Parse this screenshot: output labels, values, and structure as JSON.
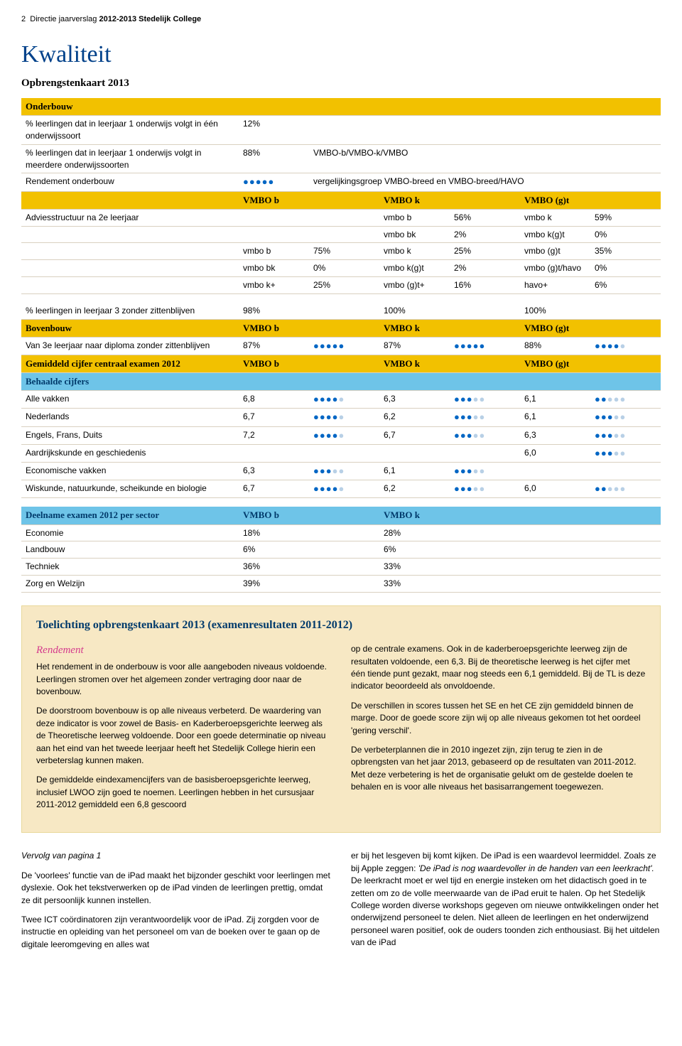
{
  "header": {
    "page_num": "2",
    "doc_title": "Directie jaarverslag",
    "year": "2012-2013",
    "school": "Stedelijk College"
  },
  "title": "Kwaliteit",
  "subtitle": "Opbrengstenkaart 2013",
  "onderbouw": {
    "header": "Onderbouw",
    "r1_label": "% leerlingen dat in leerjaar 1 onderwijs volgt in één onderwijssoort",
    "r1_val": "12%",
    "r2_label": "% leerlingen dat in leerjaar 1 onderwijs volgt in meerdere onderwijssoorten",
    "r2_val": "88%",
    "r2_note": "VMBO-b/VMBO-k/VMBO",
    "r3_label": "Rendement onderbouw",
    "r3_dots": {
      "filled": 5,
      "empty": 0
    },
    "r3_note": "vergelijkingsgroep VMBO-breed en VMBO-breed/HAVO",
    "col_b": "VMBO b",
    "col_k": "VMBO k",
    "col_gt": "VMBO (g)t",
    "advies_label": "Adviesstructuur na 2e leerjaar",
    "grid": [
      [
        "",
        "",
        "vmbo b",
        "56%",
        "vmbo k",
        "59%"
      ],
      [
        "",
        "",
        "vmbo bk",
        "2%",
        "vmbo k(g)t",
        "0%"
      ],
      [
        "vmbo b",
        "75%",
        "vmbo k",
        "25%",
        "vmbo (g)t",
        "35%"
      ],
      [
        "vmbo bk",
        "0%",
        "vmbo k(g)t",
        "2%",
        "vmbo (g)t/havo",
        "0%"
      ],
      [
        "vmbo k+",
        "25%",
        "vmbo (g)t+",
        "16%",
        "havo+",
        "6%"
      ]
    ]
  },
  "mid": {
    "r1_label": "% leerlingen in leerjaar 3 zonder zittenblijven",
    "r1_b": "98%",
    "r1_k": "100%",
    "r1_gt": "100%",
    "boven_header": "Bovenbouw",
    "col_b": "VMBO b",
    "col_k": "VMBO k",
    "col_gt": "VMBO (g)t",
    "r2_label": "Van 3e leerjaar naar diploma zonder zittenblijven",
    "r2_b": "87%",
    "r2_bd": {
      "f": 5,
      "e": 0
    },
    "r2_k": "87%",
    "r2_kd": {
      "f": 5,
      "e": 0
    },
    "r2_gt": "88%",
    "r2_gtd": {
      "f": 4,
      "e": 1
    },
    "gem_header": "Gemiddeld cijfer centraal examen 2012",
    "beh_header": "Behaalde cijfers",
    "rows": [
      {
        "label": "Alle vakken",
        "b": "6,8",
        "bd": {
          "f": 4,
          "e": 1
        },
        "k": "6,3",
        "kd": {
          "f": 3,
          "e": 2
        },
        "gt": "6,1",
        "gtd": {
          "f": 2,
          "e": 3
        }
      },
      {
        "label": "Nederlands",
        "b": "6,7",
        "bd": {
          "f": 4,
          "e": 1
        },
        "k": "6,2",
        "kd": {
          "f": 3,
          "e": 2
        },
        "gt": "6,1",
        "gtd": {
          "f": 3,
          "e": 2
        }
      },
      {
        "label": "Engels, Frans, Duits",
        "b": "7,2",
        "bd": {
          "f": 4,
          "e": 1
        },
        "k": "6,7",
        "kd": {
          "f": 3,
          "e": 2
        },
        "gt": "6,3",
        "gtd": {
          "f": 3,
          "e": 2
        }
      },
      {
        "label": "Aardrijkskunde en geschiedenis",
        "b": "",
        "bd": null,
        "k": "",
        "kd": null,
        "gt": "6,0",
        "gtd": {
          "f": 3,
          "e": 2
        }
      },
      {
        "label": "Economische vakken",
        "b": "6,3",
        "bd": {
          "f": 3,
          "e": 2
        },
        "k": "6,1",
        "kd": {
          "f": 3,
          "e": 2
        },
        "gt": "",
        "gtd": null
      },
      {
        "label": "Wiskunde, natuurkunde, scheikunde en biologie",
        "b": "6,7",
        "bd": {
          "f": 4,
          "e": 1
        },
        "k": "6,2",
        "kd": {
          "f": 3,
          "e": 2
        },
        "gt": "6,0",
        "gtd": {
          "f": 2,
          "e": 3
        }
      }
    ]
  },
  "deelname": {
    "header": "Deelname examen 2012 per sector",
    "col_b": "VMBO b",
    "col_k": "VMBO k",
    "rows": [
      {
        "label": "Economie",
        "b": "18%",
        "k": "28%"
      },
      {
        "label": "Landbouw",
        "b": "6%",
        "k": "6%"
      },
      {
        "label": "Techniek",
        "b": "36%",
        "k": "33%"
      },
      {
        "label": "Zorg en Welzijn",
        "b": "39%",
        "k": "33%"
      }
    ]
  },
  "info": {
    "title": "Toelichting opbrengstenkaart 2013 (examenresultaten 2011-2012)",
    "rendement_h": "Rendement",
    "left": [
      "Het rendement in de onderbouw is voor alle aangeboden niveaus voldoende. Leerlingen stromen over het algemeen zonder vertraging door naar de bovenbouw.",
      "De doorstroom bovenbouw is op alle niveaus verbeterd. De waardering van deze indicator is voor zowel de Basis- en Kaderberoepsgerichte leerweg als de Theoretische leerweg voldoende. Door een goede determinatie op niveau aan het eind van het tweede leerjaar heeft het Stedelijk College hierin een verbeterslag kunnen maken.",
      "De gemiddelde eindexamencijfers van de basisberoepsgerichte leerweg, inclusief LWOO zijn goed te noemen. Leerlingen hebben in het cursusjaar 2011-2012 gemiddeld een 6,8 gescoord"
    ],
    "right": [
      "op de centrale examens. Ook in de kaderberoepsgerichte leerweg zijn de resultaten voldoende, een 6,3. Bij de theoretische leerweg is het cijfer met één tiende punt gezakt, maar nog steeds een 6,1 gemiddeld. Bij de TL is deze indicator beoordeeld als onvoldoende.",
      "De verschillen in scores tussen het SE en het CE zijn gemiddeld binnen de marge. Door de goede score zijn wij op alle niveaus gekomen tot het oordeel 'gering verschil'.",
      "De verbeterplannen die in 2010 ingezet zijn, zijn terug te zien in de opbrengsten van het jaar 2013, gebaseerd op de resultaten van 2011-2012. Met deze verbetering is het de organisatie gelukt om de gestelde doelen te behalen en is voor alle niveaus het basisarrangement toegewezen."
    ]
  },
  "footer": {
    "vervolg": "Vervolg van pagina 1",
    "left": [
      "De 'voorlees' functie van de iPad maakt het bijzonder geschikt voor leerlingen met dyslexie. Ook het tekstverwerken op de iPad vinden de leerlingen prettig, omdat ze dit persoonlijk kunnen instellen.",
      "Twee ICT coördinatoren zijn verantwoordelijk voor de iPad. Zij zorgden voor de instructie en opleiding van het personeel om van de boeken over te gaan op de digitale leeromgeving en alles wat"
    ],
    "right_pre": "er bij het lesgeven bij komt kijken. De iPad is een waardevol leermiddel. Zoals ze bij Apple zeggen: ",
    "right_quote": "'De iPad is nog waardevoller in de handen van een leerkracht'.",
    "right_post": " De leerkracht moet er wel tijd en energie insteken om het didactisch goed in te zetten om zo de volle meerwaarde van de iPad eruit te halen. Op het Stedelijk College worden diverse workshops gegeven om nieuwe ontwikkelingen onder het onderwijzend personeel te delen. Niet alleen de leerlingen en het onderwijzend personeel waren positief, ook de ouders toonden zich enthousiast. Bij het uitdelen van de iPad"
  }
}
